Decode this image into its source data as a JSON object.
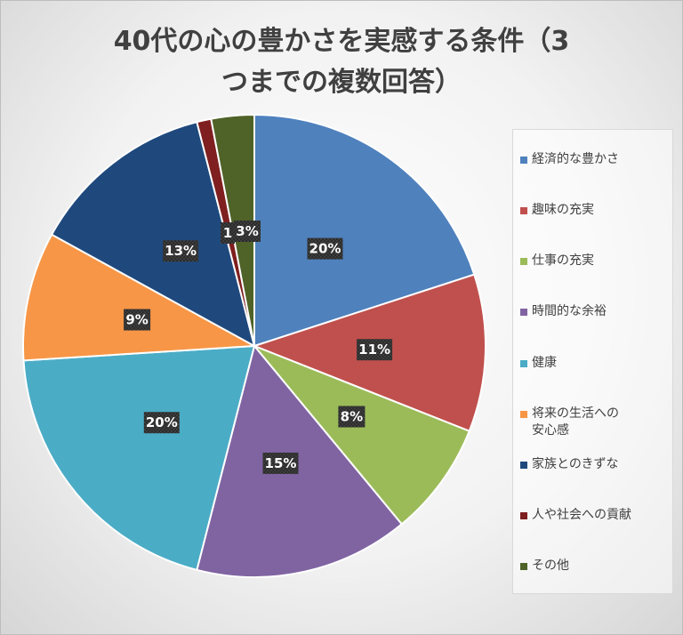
{
  "chart_data": {
    "type": "pie",
    "title": "40代の心の豊かさを実感する条件（3\nつまでの複数回答）",
    "title_lines": [
      "40代の心の豊かさを実感する条件（3",
      "つまでの複数回答）"
    ],
    "categories": [
      "経済的な豊かさ",
      "趣味の充実",
      "仕事の充実",
      "時間的な余裕",
      "健康",
      "将来の生活への安心感",
      "家族とのきずな",
      "人や社会への貢献",
      "その他"
    ],
    "legend_lines": [
      [
        "経済的な豊かさ"
      ],
      [
        "趣味の充実"
      ],
      [
        "仕事の充実"
      ],
      [
        "時間的な余裕"
      ],
      [
        "健康"
      ],
      [
        "将来の生活への",
        "安心感"
      ],
      [
        "家族とのきずな"
      ],
      [
        "人や社会への貢献"
      ],
      [
        "その他"
      ]
    ],
    "values": [
      20,
      11,
      8,
      15,
      20,
      9,
      13,
      1,
      3
    ],
    "data_labels": [
      "20%",
      "11%",
      "8%",
      "15%",
      "20%",
      "9%",
      "13%",
      "1",
      "3%"
    ],
    "colors": [
      "#4f81bd",
      "#c0504d",
      "#9bbb59",
      "#8064a2",
      "#4bacc6",
      "#f79646",
      "#1f497d",
      "#7f1f1f",
      "#4f6228"
    ],
    "legend_placement": "right"
  }
}
